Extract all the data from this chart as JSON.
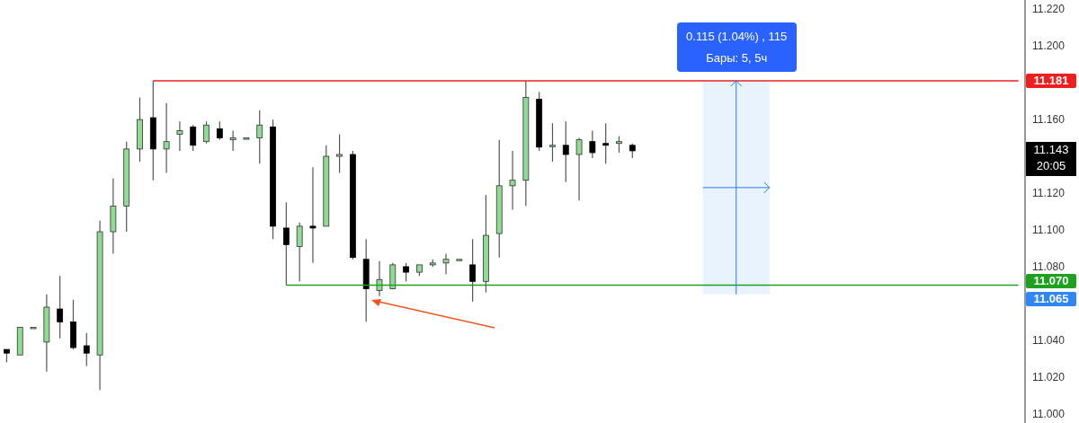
{
  "chart_data": {
    "type": "candlestick",
    "tick_labels": "y",
    "categories": [
      null,
      null,
      null,
      null,
      null,
      null,
      null,
      null,
      null,
      null,
      null,
      null,
      null,
      null,
      null,
      null,
      null,
      null,
      null,
      null,
      null,
      null,
      null,
      null,
      null,
      null,
      null,
      null,
      null,
      null,
      null,
      null,
      null,
      null,
      null,
      null,
      null,
      null,
      null,
      null,
      null,
      null,
      null,
      null,
      null,
      null,
      null,
      null,
      null,
      null,
      null,
      null,
      null,
      null,
      null,
      null,
      null,
      null,
      null,
      null,
      null,
      null,
      null,
      null,
      null,
      null,
      null,
      null,
      null,
      null,
      null,
      null,
      null,
      null,
      null,
      null,
      null
    ],
    "ohlc": [
      [
        11.035,
        11.035,
        11.028,
        11.033
      ],
      [
        11.032,
        11.047,
        11.032,
        11.047
      ],
      [
        11.047,
        11.047,
        11.047,
        11.047
      ],
      [
        11.039,
        11.065,
        11.023,
        11.058
      ],
      [
        11.057,
        11.075,
        11.041,
        11.05
      ],
      [
        11.05,
        11.062,
        11.035,
        11.036
      ],
      [
        11.037,
        11.044,
        11.026,
        11.033
      ],
      [
        11.032,
        11.105,
        11.013,
        11.099
      ],
      [
        11.099,
        11.128,
        11.087,
        11.113
      ],
      [
        11.113,
        11.148,
        11.099,
        11.144
      ],
      [
        11.144,
        11.172,
        11.137,
        11.16
      ],
      [
        11.161,
        11.181,
        11.127,
        11.144
      ],
      [
        11.144,
        11.169,
        11.131,
        11.148
      ],
      [
        11.152,
        11.159,
        11.143,
        11.154
      ],
      [
        11.156,
        11.157,
        11.143,
        11.146
      ],
      [
        11.148,
        11.159,
        11.147,
        11.157
      ],
      [
        11.155,
        11.159,
        11.149,
        11.15
      ],
      [
        11.149,
        11.154,
        11.143,
        11.15
      ],
      [
        11.15,
        11.15,
        11.15,
        11.15
      ],
      [
        11.15,
        11.165,
        11.136,
        11.157
      ],
      [
        11.156,
        11.16,
        11.095,
        11.102
      ],
      [
        11.101,
        11.115,
        11.07,
        11.092
      ],
      [
        11.091,
        11.104,
        11.072,
        11.102
      ],
      [
        11.102,
        11.134,
        11.082,
        11.101
      ],
      [
        11.102,
        11.146,
        11.102,
        11.14
      ],
      [
        11.14,
        11.152,
        11.131,
        11.141
      ],
      [
        11.141,
        11.143,
        11.084,
        11.085
      ],
      [
        11.084,
        11.095,
        11.05,
        11.068
      ],
      [
        11.067,
        11.083,
        11.064,
        11.073
      ],
      [
        11.068,
        11.082,
        11.068,
        11.081
      ],
      [
        11.08,
        11.082,
        11.072,
        11.077
      ],
      [
        11.077,
        11.081,
        11.075,
        11.081
      ],
      [
        11.081,
        11.084,
        11.08,
        11.082
      ],
      [
        11.082,
        11.087,
        11.076,
        11.084
      ],
      [
        11.084,
        11.084,
        11.084,
        11.084
      ],
      [
        11.081,
        11.095,
        11.061,
        11.072
      ],
      [
        11.072,
        11.119,
        11.066,
        11.097
      ],
      [
        11.098,
        11.149,
        11.085,
        11.124
      ],
      [
        11.124,
        11.143,
        11.111,
        11.127
      ],
      [
        11.127,
        11.181,
        11.113,
        11.172
      ],
      [
        11.171,
        11.175,
        11.143,
        11.145
      ],
      [
        11.146,
        11.158,
        11.137,
        11.146
      ],
      [
        11.146,
        11.159,
        11.126,
        11.141
      ],
      [
        11.141,
        11.15,
        11.116,
        11.149
      ],
      [
        11.148,
        11.154,
        11.139,
        11.142
      ],
      [
        11.147,
        11.158,
        11.136,
        11.146
      ],
      [
        11.147,
        11.151,
        11.142,
        11.148
      ],
      [
        11.146,
        11.147,
        11.139,
        11.143
      ],
      null,
      null,
      null,
      null,
      null,
      null,
      null,
      null,
      null,
      null,
      null,
      null,
      null,
      null,
      null,
      null,
      null,
      null,
      null,
      null,
      null,
      null,
      null,
      null,
      null,
      null,
      null,
      null,
      null
    ],
    "ylim": [
      10.995,
      11.225
    ],
    "yticks": [
      {
        "value": 11.0,
        "label": "11.000"
      },
      {
        "value": 11.02,
        "label": "11.020"
      },
      {
        "value": 11.04,
        "label": "11.040"
      },
      {
        "value": 11.08,
        "label": "11.080"
      },
      {
        "value": 11.1,
        "label": "11.100"
      },
      {
        "value": 11.12,
        "label": "11.120"
      },
      {
        "value": 11.16,
        "label": "11.160"
      },
      {
        "value": 11.2,
        "label": "11.200"
      },
      {
        "value": 11.22,
        "label": "11.220"
      }
    ],
    "ref_lines": [
      {
        "axis": "y",
        "value": 11.181,
        "label": "11.181",
        "color": "#f01e1e"
      },
      {
        "axis": "y",
        "value": 11.07,
        "label": "11.070",
        "color": "#1ea21e"
      }
    ],
    "bands": [
      {
        "axis": "y",
        "from": 11.065,
        "to": 11.181,
        "color": "#2a8ef0"
      }
    ],
    "annotations": [
      "0.115 (1.04%) , 115",
      "Бары: 5, 5ч",
      "11.065",
      "11.143",
      "20:05"
    ]
  }
}
